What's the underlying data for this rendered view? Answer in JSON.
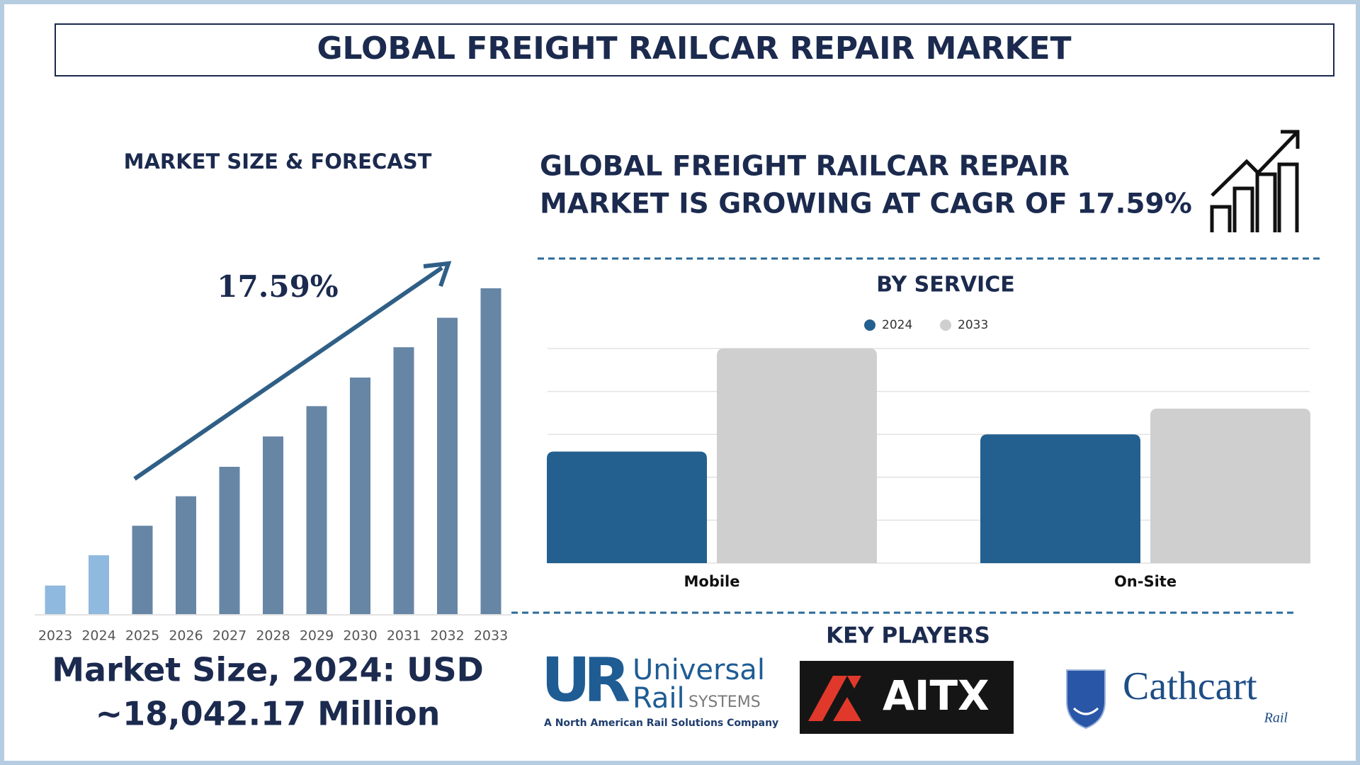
{
  "header": {
    "title": "GLOBAL FREIGHT RAILCAR REPAIR MARKET"
  },
  "chart_data": [
    {
      "type": "bar",
      "title": "MARKET SIZE & FORECAST",
      "annotation": "17.59%",
      "categories": [
        "2023",
        "2024",
        "2025",
        "2026",
        "2027",
        "2028",
        "2029",
        "2030",
        "2031",
        "2032",
        "2033"
      ],
      "values": [
        33,
        68,
        102,
        136,
        170,
        205,
        240,
        273,
        308,
        342,
        376
      ],
      "colors": [
        "#8fb9de",
        "#8fb9de",
        "#6786a6",
        "#6786a6",
        "#6786a6",
        "#6786a6",
        "#6786a6",
        "#6786a6",
        "#6786a6",
        "#6786a6",
        "#6786a6"
      ]
    },
    {
      "type": "grouped_bar",
      "title": "BY SERVICE",
      "categories": [
        "Mobile",
        "On-Site"
      ],
      "series": [
        {
          "name": "2024",
          "color": "#23608f",
          "values": [
            2.6,
            3.0
          ]
        },
        {
          "name": "2033",
          "color": "#cfcfcf",
          "values": [
            5.0,
            3.6
          ]
        }
      ],
      "ylim": [
        0,
        5
      ],
      "yticks": [
        0,
        1,
        2,
        3,
        4,
        5
      ],
      "grid": true
    }
  ],
  "headline": {
    "lines": [
      "GLOBAL FREIGHT RAILCAR REPAIR",
      "MARKET IS GROWING AT CAGR OF 17.59%"
    ]
  },
  "market_size": {
    "lines": [
      "Market Size, 2024: USD",
      "~18,042.17 Million"
    ]
  },
  "key_players": {
    "title": "KEY PLAYERS",
    "universal_rail": {
      "mark": "UR",
      "name": "Universal",
      "line2": "Rail",
      "suffix": "SYSTEMS",
      "tagline": "A North American Rail Solutions Company"
    },
    "aitx": {
      "name": "AITX"
    },
    "cathcart": {
      "name": "Cathcart",
      "sub": "Rail"
    }
  }
}
